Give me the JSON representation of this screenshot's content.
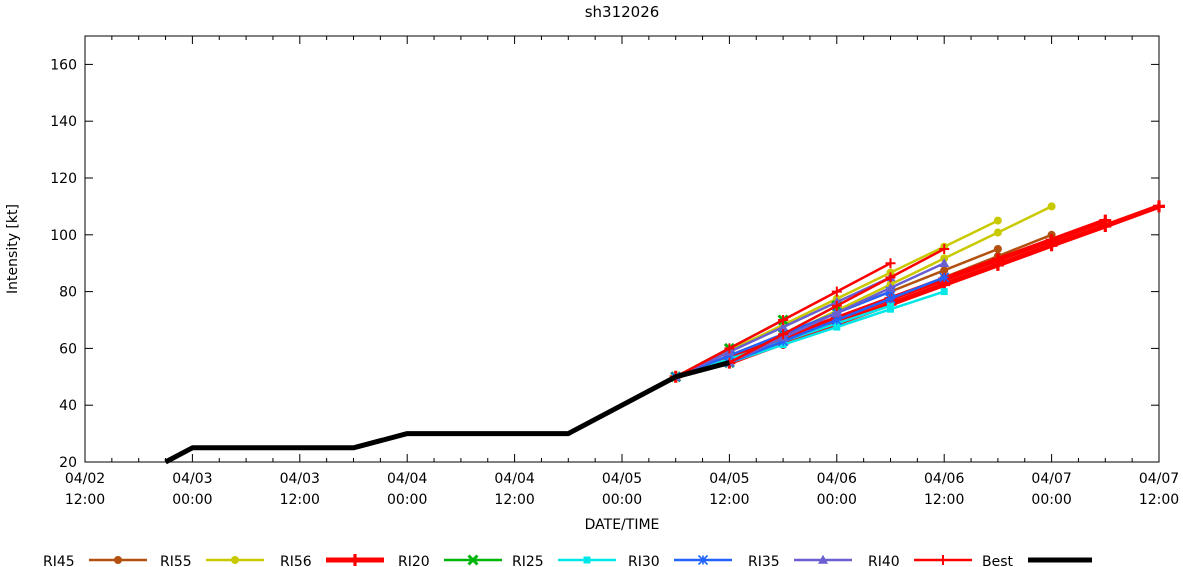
{
  "page": {
    "background": "#ffffff"
  },
  "chart_data": {
    "type": "line",
    "title": "sh312026",
    "xlabel": "DATE/TIME",
    "ylabel": "Intensity [kt]",
    "grid": false,
    "legend_position": "bottom",
    "x_axis": {
      "unit": "hours since 04/02 12:00",
      "domain": [
        0,
        120
      ],
      "major_tick_every_h": 12,
      "minor_tick_every_h": 3,
      "major_tick_labels": [
        [
          "04/02",
          "12:00"
        ],
        [
          "04/03",
          "00:00"
        ],
        [
          "04/03",
          "12:00"
        ],
        [
          "04/04",
          "00:00"
        ],
        [
          "04/04",
          "12:00"
        ],
        [
          "04/05",
          "00:00"
        ],
        [
          "04/05",
          "12:00"
        ],
        [
          "04/06",
          "00:00"
        ],
        [
          "04/06",
          "12:00"
        ],
        [
          "04/07",
          "00:00"
        ],
        [
          "04/07",
          "12:00"
        ]
      ]
    },
    "y_axis": {
      "domain": [
        20,
        170
      ],
      "tick_values": [
        20,
        40,
        60,
        80,
        100,
        120,
        140,
        160
      ]
    },
    "series": [
      {
        "name": "RI45",
        "color": "#b2500f",
        "marker": "circle",
        "line_width": 2.5,
        "runs": [
          {
            "init": "04/05 06:00",
            "points": [
              [
                66,
                50
              ],
              [
                72,
                57.5
              ],
              [
                78,
                65
              ],
              [
                84,
                72.5
              ],
              [
                90,
                80
              ],
              [
                96,
                87.5
              ],
              [
                102,
                95
              ]
            ]
          },
          {
            "init": "04/05 12:00",
            "points": [
              [
                72,
                55
              ],
              [
                78,
                62.5
              ],
              [
                84,
                70
              ],
              [
                90,
                77.5
              ],
              [
                96,
                85
              ],
              [
                102,
                92.5
              ],
              [
                108,
                100
              ]
            ]
          }
        ]
      },
      {
        "name": "RI55",
        "color": "#c9c900",
        "marker": "circle",
        "line_width": 2.5,
        "runs": [
          {
            "init": "04/05 06:00",
            "points": [
              [
                66,
                50
              ],
              [
                72,
                59.2
              ],
              [
                78,
                68.3
              ],
              [
                84,
                77.5
              ],
              [
                90,
                86.7
              ],
              [
                96,
                95.8
              ],
              [
                102,
                105
              ]
            ]
          },
          {
            "init": "04/05 12:00",
            "points": [
              [
                72,
                55
              ],
              [
                78,
                64.2
              ],
              [
                84,
                73.3
              ],
              [
                90,
                82.5
              ],
              [
                96,
                91.7
              ],
              [
                102,
                100.8
              ],
              [
                108,
                110
              ]
            ]
          }
        ]
      },
      {
        "name": "RI56",
        "color": "#ff0000",
        "marker": "plus",
        "line_width": 5,
        "runs": [
          {
            "init": "04/05 06:00",
            "points": [
              [
                66,
                50
              ],
              [
                72,
                56.9
              ],
              [
                78,
                63.8
              ],
              [
                84,
                70.6
              ],
              [
                90,
                77.5
              ],
              [
                96,
                84.4
              ],
              [
                102,
                91.3
              ],
              [
                108,
                98.1
              ],
              [
                114,
                105
              ]
            ]
          },
          {
            "init": "04/05 12:00",
            "points": [
              [
                72,
                55
              ],
              [
                78,
                61.9
              ],
              [
                84,
                68.8
              ],
              [
                90,
                75.6
              ],
              [
                96,
                82.5
              ],
              [
                102,
                89.4
              ],
              [
                108,
                96.3
              ],
              [
                114,
                103.1
              ],
              [
                120,
                110
              ]
            ]
          }
        ]
      },
      {
        "name": "RI20",
        "color": "#00b50a",
        "marker": "cross",
        "line_width": 2.5,
        "runs": [
          {
            "init": "04/05 06:00",
            "points": [
              [
                66,
                50
              ],
              [
                72,
                60
              ],
              [
                78,
                70
              ]
            ]
          },
          {
            "init": "04/05 12:00",
            "points": [
              [
                72,
                55
              ],
              [
                78,
                65
              ],
              [
                84,
                75
              ]
            ]
          }
        ]
      },
      {
        "name": "RI25",
        "color": "#00e7e7",
        "marker": "square",
        "line_width": 2.5,
        "runs": [
          {
            "init": "04/05 06:00",
            "points": [
              [
                66,
                50
              ],
              [
                72,
                56.3
              ],
              [
                78,
                62.5
              ],
              [
                84,
                68.8
              ],
              [
                90,
                75
              ]
            ]
          },
          {
            "init": "04/05 12:00",
            "points": [
              [
                72,
                55
              ],
              [
                78,
                61.3
              ],
              [
                84,
                67.5
              ],
              [
                90,
                73.8
              ],
              [
                96,
                80
              ]
            ]
          }
        ]
      },
      {
        "name": "RI30",
        "color": "#2263ff",
        "marker": "star",
        "line_width": 2.5,
        "runs": [
          {
            "init": "04/05 06:00",
            "points": [
              [
                66,
                50
              ],
              [
                72,
                57.5
              ],
              [
                78,
                65
              ],
              [
                84,
                72.5
              ],
              [
                90,
                80
              ]
            ]
          },
          {
            "init": "04/05 12:00",
            "points": [
              [
                72,
                55
              ],
              [
                78,
                62.5
              ],
              [
                84,
                70
              ],
              [
                90,
                77.5
              ],
              [
                96,
                85
              ]
            ]
          }
        ]
      },
      {
        "name": "RI35",
        "color": "#6a5fd0",
        "marker": "triangle",
        "line_width": 2.5,
        "runs": [
          {
            "init": "04/05 06:00",
            "points": [
              [
                66,
                50
              ],
              [
                72,
                58.8
              ],
              [
                78,
                67.5
              ],
              [
                84,
                76.3
              ],
              [
                90,
                85
              ]
            ]
          },
          {
            "init": "04/05 12:00",
            "points": [
              [
                72,
                55
              ],
              [
                78,
                63.8
              ],
              [
                84,
                72.5
              ],
              [
                90,
                81.3
              ],
              [
                96,
                90
              ]
            ]
          }
        ]
      },
      {
        "name": "RI40",
        "color": "#ff0000",
        "marker": "plus",
        "line_width": 2.5,
        "runs": [
          {
            "init": "04/05 06:00",
            "points": [
              [
                66,
                50
              ],
              [
                72,
                60
              ],
              [
                78,
                70
              ],
              [
                84,
                80
              ],
              [
                90,
                90
              ]
            ]
          },
          {
            "init": "04/05 12:00",
            "points": [
              [
                72,
                55
              ],
              [
                78,
                65
              ],
              [
                84,
                75
              ],
              [
                90,
                85
              ],
              [
                96,
                95
              ]
            ]
          }
        ]
      },
      {
        "name": "Best",
        "color": "#000000",
        "marker": "none",
        "line_width": 5,
        "runs": [
          {
            "init": "",
            "points": [
              [
                9,
                20
              ],
              [
                12,
                25
              ],
              [
                30,
                25
              ],
              [
                36,
                30
              ],
              [
                54,
                30
              ],
              [
                60,
                40
              ],
              [
                66,
                50
              ],
              [
                72,
                55
              ]
            ]
          }
        ]
      }
    ],
    "legend_order": [
      "RI45",
      "RI55",
      "RI56",
      "RI20",
      "RI25",
      "RI30",
      "RI35",
      "RI40",
      "Best"
    ]
  }
}
